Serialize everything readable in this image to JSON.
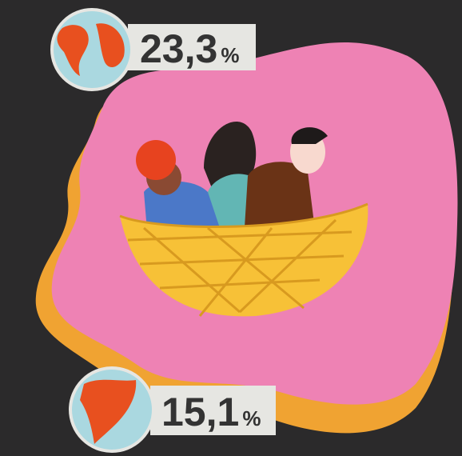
{
  "stats": [
    {
      "value": "23,3",
      "unit": "%"
    },
    {
      "value": "15,1",
      "unit": "%"
    }
  ]
}
